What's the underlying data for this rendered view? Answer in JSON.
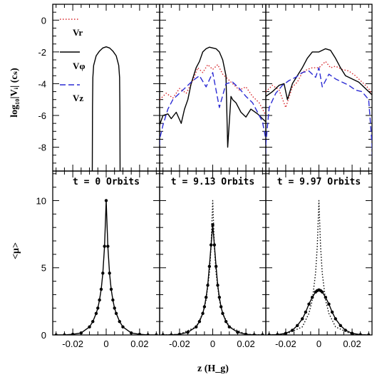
{
  "figure": {
    "xlabel_top_ylabel": "log₁₀|Vᵢ| (cₛ)",
    "xlabel_bottom_ylabel": "<μ>",
    "xlabel": "z (H_g)",
    "colors": {
      "vr": "#d7262b",
      "vphi": "#000000",
      "vz": "#2b2bd4",
      "axes": "#000000"
    }
  },
  "legend": {
    "vr": "Vr",
    "vphi": "Vφ",
    "vz": "Vz"
  },
  "panel_titles": [
    "t = 0 Orbits",
    "t = 9.13 Orbits",
    "t = 9.97 Orbits"
  ],
  "ticks": {
    "top_y": [
      "0",
      "-2",
      "-4",
      "-6",
      "-8"
    ],
    "bottom_y": [
      "0",
      "5",
      "10"
    ],
    "x": [
      "-0.02",
      "0",
      "0.02"
    ]
  },
  "chart_data": [
    {
      "type": "line",
      "panel": "top-left",
      "xlim": [
        -0.032,
        0.032
      ],
      "ylim": [
        -9.5,
        1
      ],
      "series": [
        {
          "name": "Vφ",
          "style": "solid",
          "color": "#000000",
          "x": [
            -0.0083,
            -0.0082,
            -0.008,
            -0.0075,
            -0.006,
            -0.004,
            -0.002,
            0,
            0.002,
            0.004,
            0.006,
            0.0075,
            0.008,
            0.0082,
            0.0083
          ],
          "y": [
            -9.5,
            -5.5,
            -3.6,
            -2.85,
            -2.25,
            -1.95,
            -1.75,
            -1.68,
            -1.75,
            -1.95,
            -2.25,
            -2.85,
            -3.6,
            -5.5,
            -9.5
          ]
        }
      ]
    },
    {
      "type": "line",
      "panel": "top-middle",
      "xlim": [
        -0.032,
        0.032
      ],
      "ylim": [
        -9.5,
        1
      ],
      "series": [
        {
          "name": "Vr",
          "style": "dotted",
          "color": "#d7262b",
          "x": [
            -0.032,
            -0.028,
            -0.024,
            -0.02,
            -0.016,
            -0.012,
            -0.009,
            -0.006,
            -0.003,
            0,
            0.003,
            0.006,
            0.009,
            0.012,
            0.016,
            0.02,
            0.024,
            0.028,
            0.032
          ],
          "y": [
            -5.0,
            -4.6,
            -4.9,
            -4.3,
            -4.6,
            -3.8,
            -3.0,
            -3.3,
            -2.8,
            -3.1,
            -2.8,
            -3.4,
            -3.7,
            -4.0,
            -4.4,
            -4.2,
            -4.8,
            -5.2,
            -6.0
          ]
        },
        {
          "name": "Vφ",
          "style": "solid",
          "color": "#000000",
          "x": [
            -0.032,
            -0.03,
            -0.027,
            -0.025,
            -0.022,
            -0.019,
            -0.017,
            -0.015,
            -0.013,
            -0.01,
            -0.008,
            -0.006,
            -0.004,
            -0.002,
            0,
            0.002,
            0.004,
            0.006,
            0.008,
            0.009,
            0.011,
            0.012,
            0.014,
            0.017,
            0.02,
            0.023,
            0.027,
            0.03,
            0.032
          ],
          "y": [
            -6.6,
            -6.0,
            -5.9,
            -6.2,
            -5.8,
            -6.5,
            -5.6,
            -5.0,
            -4.0,
            -3.0,
            -2.6,
            -2.0,
            -1.8,
            -1.7,
            -1.75,
            -1.8,
            -2.0,
            -2.5,
            -3.5,
            -8.0,
            -4.8,
            -5.0,
            -5.2,
            -5.8,
            -6.1,
            -5.6,
            -5.9,
            -6.2,
            -6.4
          ]
        },
        {
          "name": "Vz",
          "style": "dashed",
          "color": "#2b2bd4",
          "x": [
            -0.0325,
            -0.032,
            -0.03,
            -0.027,
            -0.024,
            -0.02,
            -0.016,
            -0.012,
            -0.008,
            -0.004,
            0,
            0.004,
            0.008,
            0.012,
            0.016,
            0.02,
            0.024,
            0.027,
            0.03,
            0.032,
            0.0325
          ],
          "y": [
            -9.5,
            -7.5,
            -6.6,
            -5.6,
            -5.0,
            -4.6,
            -4.2,
            -3.8,
            -3.5,
            -4.2,
            -3.3,
            -5.5,
            -4.0,
            -3.9,
            -4.3,
            -4.8,
            -5.2,
            -5.8,
            -6.4,
            -7.5,
            -9.5
          ]
        }
      ]
    },
    {
      "type": "line",
      "panel": "top-right",
      "xlim": [
        -0.032,
        0.032
      ],
      "ylim": [
        -9.5,
        1
      ],
      "series": [
        {
          "name": "Vr",
          "style": "dotted",
          "color": "#d7262b",
          "x": [
            -0.032,
            -0.028,
            -0.024,
            -0.02,
            -0.016,
            -0.013,
            -0.01,
            -0.007,
            -0.004,
            0,
            0.004,
            0.007,
            0.01,
            0.014,
            0.018,
            0.022,
            0.026,
            0.03,
            0.032
          ],
          "y": [
            -4.5,
            -4.1,
            -4.4,
            -5.5,
            -4.2,
            -3.9,
            -3.3,
            -3.1,
            -3.0,
            -3.0,
            -2.6,
            -3.0,
            -2.9,
            -3.1,
            -3.2,
            -3.5,
            -3.9,
            -4.3,
            -4.7
          ]
        },
        {
          "name": "Vφ",
          "style": "solid",
          "color": "#000000",
          "x": [
            -0.032,
            -0.028,
            -0.024,
            -0.021,
            -0.019,
            -0.016,
            -0.013,
            -0.01,
            -0.007,
            -0.004,
            0,
            0.004,
            0.007,
            0.01,
            0.013,
            0.016,
            0.02,
            0.024,
            0.028,
            0.032
          ],
          "y": [
            -4.8,
            -4.5,
            -4.1,
            -4.0,
            -5.0,
            -4.0,
            -3.5,
            -3.0,
            -2.4,
            -2.0,
            -2.0,
            -1.8,
            -1.9,
            -2.4,
            -3.0,
            -3.5,
            -3.7,
            -3.9,
            -4.3,
            -4.7
          ]
        },
        {
          "name": "Vz",
          "style": "dashed",
          "color": "#2b2bd4",
          "x": [
            -0.0325,
            -0.032,
            -0.03,
            -0.026,
            -0.022,
            -0.018,
            -0.014,
            -0.01,
            -0.006,
            -0.002,
            0,
            0.002,
            0.006,
            0.01,
            0.014,
            0.018,
            0.022,
            0.026,
            0.03,
            0.032,
            0.0325
          ],
          "y": [
            -9.5,
            -7.8,
            -5.5,
            -4.6,
            -4.1,
            -3.8,
            -3.6,
            -3.3,
            -3.2,
            -3.6,
            -3.0,
            -4.2,
            -3.4,
            -3.7,
            -3.9,
            -4.1,
            -4.4,
            -4.5,
            -5.0,
            -7.8,
            -9.5
          ]
        }
      ]
    },
    {
      "type": "line",
      "panel": "bottom-left",
      "title": "t = 0 Orbits",
      "xlim": [
        -0.032,
        0.032
      ],
      "ylim": [
        0,
        12.2
      ],
      "series": [
        {
          "name": "",
          "style": "solid-with-markers",
          "color": "#000000",
          "x": [
            -0.03,
            -0.025,
            -0.02,
            -0.015,
            -0.01,
            -0.008,
            -0.006,
            -0.005,
            -0.004,
            -0.003,
            -0.002,
            -0.001,
            0,
            0.001,
            0.002,
            0.003,
            0.004,
            0.005,
            0.006,
            0.008,
            0.01,
            0.015,
            0.02,
            0.025,
            0.03
          ],
          "y": [
            0.0,
            0.0,
            0.05,
            0.15,
            0.6,
            1.0,
            1.6,
            2.0,
            2.6,
            3.4,
            4.6,
            6.6,
            10.0,
            6.6,
            4.6,
            3.4,
            2.6,
            2.0,
            1.6,
            1.0,
            0.6,
            0.15,
            0.05,
            0.0,
            0.0
          ]
        }
      ]
    },
    {
      "type": "line",
      "panel": "bottom-middle",
      "title": "t = 9.13 Orbits",
      "xlim": [
        -0.032,
        0.032
      ],
      "ylim": [
        0,
        12.2
      ],
      "series": [
        {
          "name": "",
          "style": "solid-with-markers",
          "color": "#000000",
          "x": [
            -0.03,
            -0.025,
            -0.02,
            -0.015,
            -0.01,
            -0.008,
            -0.006,
            -0.005,
            -0.004,
            -0.003,
            -0.002,
            -0.001,
            0,
            0.001,
            0.002,
            0.003,
            0.004,
            0.005,
            0.006,
            0.008,
            0.01,
            0.015,
            0.02,
            0.025,
            0.03
          ],
          "y": [
            0.0,
            0.0,
            0.05,
            0.2,
            0.6,
            1.0,
            1.6,
            2.1,
            2.8,
            3.7,
            5.1,
            6.7,
            8.2,
            6.7,
            5.1,
            3.7,
            2.8,
            2.1,
            1.6,
            1.0,
            0.6,
            0.2,
            0.05,
            0.0,
            0.0
          ]
        },
        {
          "name": "",
          "style": "dotted",
          "color": "#000000",
          "x": [
            -0.03,
            -0.02,
            -0.01,
            -0.006,
            -0.004,
            -0.002,
            -0.001,
            0,
            0.001,
            0.002,
            0.004,
            0.006,
            0.01,
            0.02,
            0.03
          ],
          "y": [
            0.0,
            0.05,
            0.6,
            1.6,
            2.6,
            4.6,
            6.6,
            10.0,
            6.6,
            4.6,
            2.6,
            1.6,
            0.6,
            0.05,
            0.0
          ]
        }
      ]
    },
    {
      "type": "line",
      "panel": "bottom-right",
      "title": "t = 9.97 Orbits",
      "xlim": [
        -0.032,
        0.032
      ],
      "ylim": [
        0,
        12.2
      ],
      "series": [
        {
          "name": "",
          "style": "solid-with-markers",
          "color": "#000000",
          "x": [
            -0.03,
            -0.025,
            -0.02,
            -0.016,
            -0.013,
            -0.01,
            -0.008,
            -0.006,
            -0.004,
            -0.002,
            -0.001,
            0,
            0.001,
            0.002,
            0.004,
            0.006,
            0.008,
            0.01,
            0.013,
            0.016,
            0.02,
            0.025,
            0.03
          ],
          "y": [
            0.0,
            0.02,
            0.12,
            0.35,
            0.7,
            1.2,
            1.7,
            2.3,
            2.8,
            3.2,
            3.3,
            3.35,
            3.3,
            3.2,
            2.8,
            2.3,
            1.7,
            1.2,
            0.7,
            0.35,
            0.12,
            0.02,
            0.0
          ]
        },
        {
          "name": "",
          "style": "dotted",
          "color": "#000000",
          "x": [
            -0.03,
            -0.02,
            -0.01,
            -0.006,
            -0.004,
            -0.002,
            -0.001,
            0,
            0.001,
            0.002,
            0.004,
            0.006,
            0.01,
            0.02,
            0.03
          ],
          "y": [
            0.0,
            0.05,
            0.6,
            1.6,
            2.6,
            4.6,
            6.6,
            10.0,
            6.6,
            4.6,
            2.6,
            1.6,
            0.6,
            0.05,
            0.0
          ]
        }
      ]
    }
  ]
}
